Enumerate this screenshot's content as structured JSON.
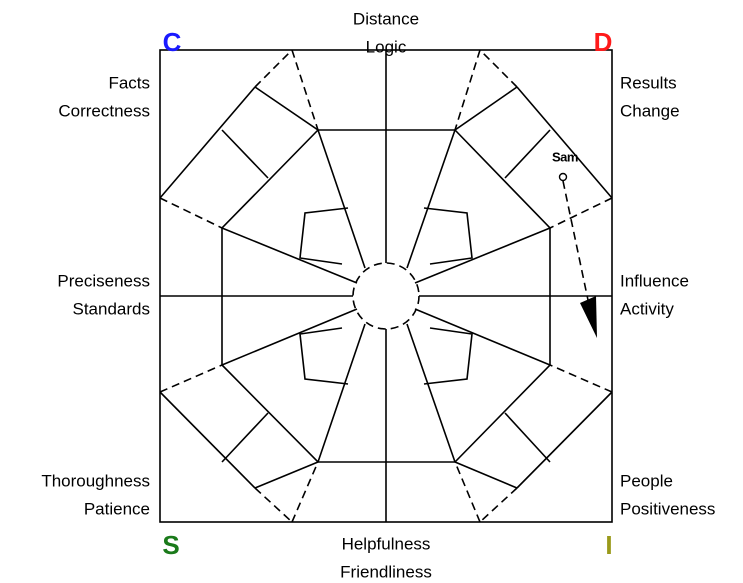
{
  "corners": {
    "c": "C",
    "d": "D",
    "s": "S",
    "i": "I"
  },
  "labels": {
    "top": [
      "Distance",
      "Logic"
    ],
    "top_left": [
      "Facts",
      "Correctness"
    ],
    "top_right": [
      "Results",
      "Change"
    ],
    "left": [
      "Preciseness",
      "Standards"
    ],
    "right": [
      "Influence",
      "Activity"
    ],
    "bottom_left": [
      "Thoroughness",
      "Patience"
    ],
    "bottom_right": [
      "People",
      "Positiveness"
    ],
    "bottom": [
      "Helpfulness",
      "Friendliness"
    ]
  },
  "marker": {
    "label": "Sam"
  }
}
